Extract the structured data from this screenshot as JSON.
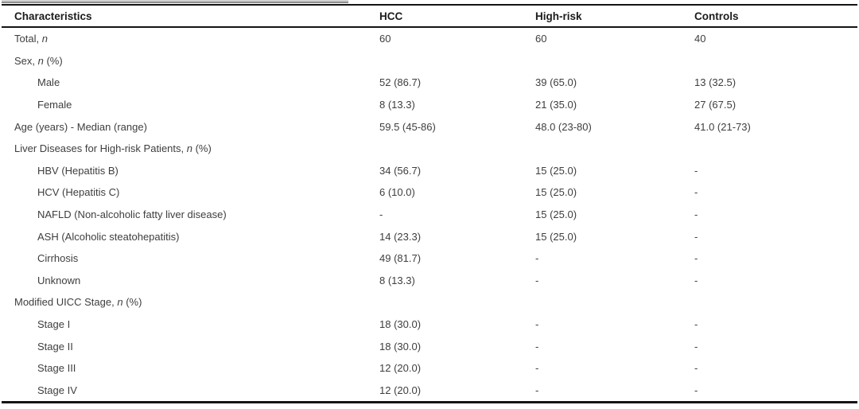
{
  "colors": {
    "bg": "#ffffff",
    "rule": "#141414",
    "text": "#3e3e3e",
    "header_text": "#1c1c1c",
    "sliver_light": "#d2d2d2",
    "sliver_dark": "#8e8e8e"
  },
  "table": {
    "columns": {
      "characteristics": "Characteristics",
      "hcc": "HCC",
      "high_risk": "High-risk",
      "controls": "Controls"
    },
    "rows": [
      {
        "label": "Total, ",
        "italic": "n",
        "after": "",
        "hcc": "60",
        "high_risk": "60",
        "controls": "40"
      },
      {
        "label": "Sex, ",
        "italic": "n",
        "after": " (%)"
      },
      {
        "label": "Male",
        "hcc": "52 (86.7)",
        "high_risk": "39 (65.0)",
        "controls": "13 (32.5)"
      },
      {
        "label": "Female",
        "hcc": "8 (13.3)",
        "high_risk": "21 (35.0)",
        "controls": "27 (67.5)"
      },
      {
        "label": "Age (years) - Median (range)",
        "hcc": "59.5 (45-86)",
        "high_risk": "48.0 (23-80)",
        "controls": "41.0 (21-73)"
      },
      {
        "label": "Liver Diseases for High-risk Patients, ",
        "italic": "n",
        "after": " (%)"
      },
      {
        "label": "HBV (Hepatitis B)",
        "hcc": "34 (56.7)",
        "high_risk": "15 (25.0)",
        "controls": "-"
      },
      {
        "label": "HCV (Hepatitis C)",
        "hcc": "6 (10.0)",
        "high_risk": "15 (25.0)",
        "controls": "-"
      },
      {
        "label": "NAFLD (Non-alcoholic fatty liver disease)",
        "hcc": "-",
        "high_risk": "15 (25.0)",
        "controls": "-"
      },
      {
        "label": "ASH (Alcoholic steatohepatitis)",
        "hcc": "14 (23.3)",
        "high_risk": "15 (25.0)",
        "controls": "-"
      },
      {
        "label": "Cirrhosis",
        "hcc": "49 (81.7)",
        "high_risk": "-",
        "controls": "-"
      },
      {
        "label": "Unknown",
        "hcc": "8 (13.3)",
        "high_risk": "-",
        "controls": "-"
      },
      {
        "label": "Modified UICC Stage, ",
        "italic": "n",
        "after": " (%)"
      },
      {
        "label": "Stage I",
        "hcc": "18 (30.0)",
        "high_risk": "-",
        "controls": "-"
      },
      {
        "label": "Stage II",
        "hcc": "18 (30.0)",
        "high_risk": "-",
        "controls": "-"
      },
      {
        "label": "Stage III",
        "hcc": "12 (20.0)",
        "high_risk": "-",
        "controls": "-"
      },
      {
        "label": "Stage IV",
        "hcc": "12 (20.0)",
        "high_risk": "-",
        "controls": "-"
      }
    ]
  }
}
